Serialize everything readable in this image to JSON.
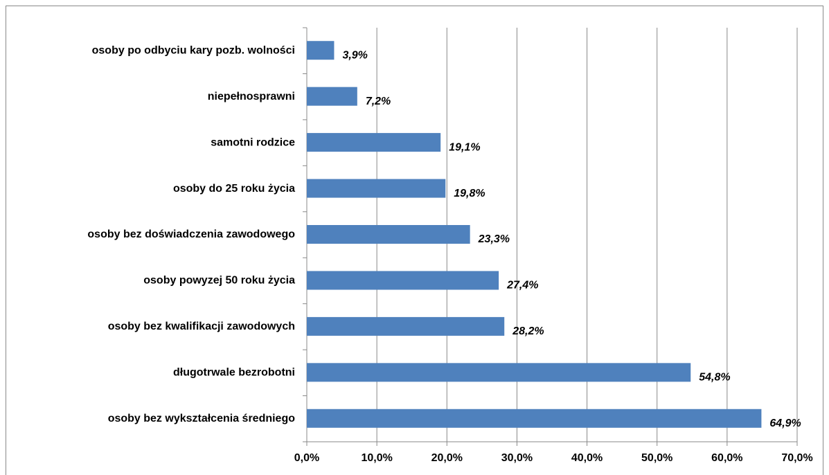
{
  "chart_data": {
    "type": "bar",
    "orientation": "horizontal",
    "categories": [
      "osoby po odbyciu kary pozb. wolności",
      "niepełnosprawni",
      "samotni rodzice",
      "osoby do 25 roku życia",
      "osoby bez doświadczenia zawodowego",
      "osoby powyzej 50 roku życia",
      "osoby bez kwalifikacji zawodowych",
      "długotrwale bezrobotni",
      "osoby bez wykształcenia średniego"
    ],
    "values": [
      3.9,
      7.2,
      19.1,
      19.8,
      23.3,
      27.4,
      28.2,
      54.8,
      64.9
    ],
    "value_labels": [
      "3,9%",
      "7,2%",
      "19,1%",
      "19,8%",
      "23,3%",
      "27,4%",
      "28,2%",
      "54,8%",
      "64,9%"
    ],
    "color": "#4f81bd",
    "xlim": [
      0,
      70
    ],
    "xticks": [
      {
        "value": 0,
        "label": "0,0%"
      },
      {
        "value": 10,
        "label": "10,0%"
      },
      {
        "value": 20,
        "label": "20,0%"
      },
      {
        "value": 30,
        "label": "30,0%"
      },
      {
        "value": 40,
        "label": "40,0%"
      },
      {
        "value": 50,
        "label": "50,0%"
      },
      {
        "value": 60,
        "label": "60,0%"
      },
      {
        "value": 70,
        "label": "70,0%"
      }
    ],
    "grid": true
  }
}
